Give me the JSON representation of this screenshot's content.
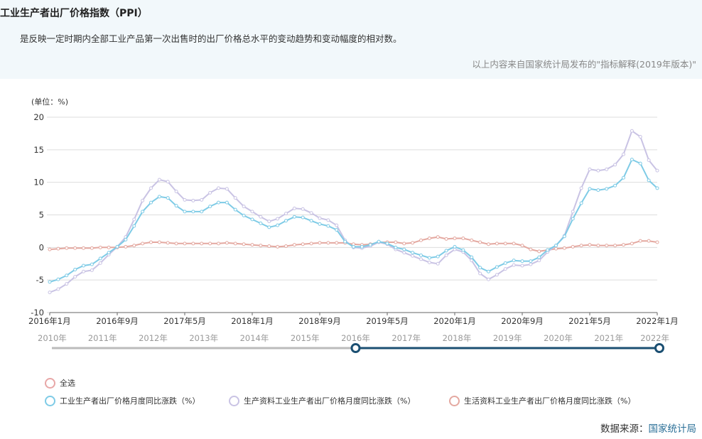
{
  "header": {
    "title": "工业生产者出厂价格指数（PPI）",
    "description": "是反映一定时期内全部工业产品第一次出售时的出厂价格总水平的变动趋势和变动幅度的相对数。",
    "source_note": "以上内容来自国家统计局发布的\"指标解释(2019年版本)\""
  },
  "footer": {
    "source_label": "数据来源：",
    "source_link": "国家统计局"
  },
  "slider": {
    "year_labels": [
      "2010年",
      "2011年",
      "2012年",
      "2013年",
      "2014年",
      "2015年",
      "2016年",
      "2017年",
      "2018年",
      "2019年",
      "2020年",
      "2021年",
      "2022年"
    ],
    "range_start": 2016,
    "range_end": 2022,
    "colors": {
      "track": "#bbbbbb",
      "selected": "#1b4f72",
      "handle": "#1b4f72"
    }
  },
  "legend": [
    {
      "label": "全选",
      "color": "#e8a7a7"
    },
    {
      "label": "工业生产者出厂价格月度同比涨跌（%）",
      "color": "#7ecbe6"
    },
    {
      "label": "生产资料工业生产者出厂价格月度同比涨跌（%）",
      "color": "#c9c3e4"
    },
    {
      "label": "生活资料工业生产者出厂价格月度同比涨跌（%）",
      "color": "#e4a8a0"
    }
  ],
  "chart_data": {
    "type": "line",
    "unit_label": "(单位：%)",
    "ylim": [
      -10,
      20
    ],
    "yticks": [
      -10,
      -5,
      0,
      5,
      10,
      15,
      20
    ],
    "x_tick_labels": [
      "2016年1月",
      "2016年9月",
      "2017年5月",
      "2018年1月",
      "2018年9月",
      "2019年5月",
      "2020年1月",
      "2020年9月",
      "2021年5月",
      "2022年1月"
    ],
    "grid": true,
    "x": [
      "2016-01",
      "2016-02",
      "2016-03",
      "2016-04",
      "2016-05",
      "2016-06",
      "2016-07",
      "2016-08",
      "2016-09",
      "2016-10",
      "2016-11",
      "2016-12",
      "2017-01",
      "2017-02",
      "2017-03",
      "2017-04",
      "2017-05",
      "2017-06",
      "2017-07",
      "2017-08",
      "2017-09",
      "2017-10",
      "2017-11",
      "2017-12",
      "2018-01",
      "2018-02",
      "2018-03",
      "2018-04",
      "2018-05",
      "2018-06",
      "2018-07",
      "2018-08",
      "2018-09",
      "2018-10",
      "2018-11",
      "2018-12",
      "2019-01",
      "2019-02",
      "2019-03",
      "2019-04",
      "2019-05",
      "2019-06",
      "2019-07",
      "2019-08",
      "2019-09",
      "2019-10",
      "2019-11",
      "2019-12",
      "2020-01",
      "2020-02",
      "2020-03",
      "2020-04",
      "2020-05",
      "2020-06",
      "2020-07",
      "2020-08",
      "2020-09",
      "2020-10",
      "2020-11",
      "2020-12",
      "2021-01",
      "2021-02",
      "2021-03",
      "2021-04",
      "2021-05",
      "2021-06",
      "2021-07",
      "2021-08",
      "2021-09",
      "2021-10",
      "2021-11",
      "2021-12",
      "2022-01"
    ],
    "series": [
      {
        "name": "工业生产者出厂价格月度同比涨跌（%）",
        "color": "#7ecbe6",
        "values": [
          -5.3,
          -4.9,
          -4.3,
          -3.4,
          -2.8,
          -2.6,
          -1.7,
          -0.8,
          0.1,
          1.2,
          3.3,
          5.5,
          6.9,
          7.8,
          7.6,
          6.4,
          5.5,
          5.5,
          5.5,
          6.3,
          6.9,
          6.9,
          5.8,
          4.9,
          4.3,
          3.7,
          3.1,
          3.4,
          4.1,
          4.7,
          4.6,
          4.1,
          3.6,
          3.3,
          2.7,
          0.9,
          0.1,
          0.1,
          0.4,
          0.9,
          0.6,
          0.0,
          -0.3,
          -0.8,
          -1.2,
          -1.6,
          -1.4,
          -0.5,
          0.1,
          -0.4,
          -1.5,
          -3.1,
          -3.7,
          -3.0,
          -2.4,
          -2.0,
          -2.1,
          -2.1,
          -1.5,
          -0.4,
          0.3,
          1.7,
          4.4,
          6.8,
          9.0,
          8.8,
          9.0,
          9.5,
          10.7,
          13.5,
          12.9,
          10.3,
          9.1
        ]
      },
      {
        "name": "生产资料工业生产者出厂价格月度同比涨跌（%）",
        "color": "#c9c3e4",
        "values": [
          -6.9,
          -6.4,
          -5.6,
          -4.5,
          -3.7,
          -3.5,
          -2.4,
          -1.1,
          0.1,
          1.6,
          4.3,
          7.2,
          9.1,
          10.4,
          10.1,
          8.6,
          7.3,
          7.2,
          7.3,
          8.4,
          9.1,
          9.0,
          7.6,
          6.3,
          5.5,
          4.7,
          4.0,
          4.4,
          5.2,
          6.0,
          5.9,
          5.3,
          4.5,
          4.2,
          3.4,
          1.1,
          0.0,
          -0.1,
          0.2,
          0.8,
          0.5,
          -0.3,
          -0.8,
          -1.3,
          -1.8,
          -2.3,
          -2.5,
          -1.2,
          -0.3,
          -0.7,
          -2.0,
          -4.0,
          -4.9,
          -4.2,
          -3.3,
          -2.7,
          -2.8,
          -2.6,
          -2.0,
          -0.7,
          0.3,
          1.8,
          5.5,
          9.1,
          12.0,
          11.8,
          12.0,
          12.7,
          14.3,
          17.9,
          17.0,
          13.4,
          11.8
        ]
      },
      {
        "name": "生活资料工业生产者出厂价格月度同比涨跌（%）",
        "color": "#e4a8a0",
        "values": [
          -0.3,
          -0.2,
          -0.1,
          -0.1,
          -0.1,
          -0.1,
          0.0,
          0.0,
          0.0,
          0.1,
          0.3,
          0.6,
          0.8,
          0.8,
          0.7,
          0.6,
          0.6,
          0.6,
          0.6,
          0.6,
          0.6,
          0.7,
          0.6,
          0.5,
          0.4,
          0.3,
          0.2,
          0.1,
          0.2,
          0.4,
          0.5,
          0.6,
          0.7,
          0.7,
          0.7,
          0.7,
          0.5,
          0.4,
          0.5,
          0.8,
          0.8,
          0.8,
          0.6,
          0.7,
          1.1,
          1.4,
          1.6,
          1.3,
          1.4,
          1.4,
          1.1,
          0.8,
          0.5,
          0.6,
          0.6,
          0.6,
          0.3,
          -0.3,
          -0.6,
          -0.4,
          -0.2,
          -0.1,
          0.1,
          0.3,
          0.4,
          0.3,
          0.3,
          0.3,
          0.4,
          0.6,
          1.0,
          1.0,
          0.8
        ]
      }
    ]
  }
}
